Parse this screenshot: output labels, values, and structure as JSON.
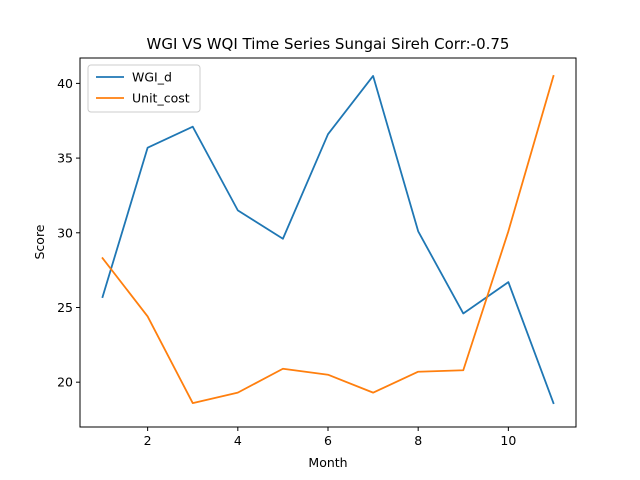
{
  "chart_data": {
    "type": "line",
    "title": "WGI VS WQI Time Series Sungai Sireh Corr:-0.75",
    "xlabel": "Month",
    "ylabel": "Score",
    "x": [
      1,
      2,
      3,
      4,
      5,
      6,
      7,
      8,
      9,
      10,
      11
    ],
    "xlim": [
      0.5,
      11.5
    ],
    "ylim": [
      17.0,
      41.7
    ],
    "xticks": [
      2,
      4,
      6,
      8,
      10
    ],
    "yticks": [
      20,
      25,
      30,
      35,
      40
    ],
    "grid": false,
    "legend_position": "top-left",
    "series": [
      {
        "name": "WGI_d",
        "color": "#1f77b4",
        "values": [
          25.7,
          35.7,
          37.1,
          31.5,
          29.6,
          36.6,
          40.5,
          30.1,
          24.6,
          26.7,
          18.6
        ]
      },
      {
        "name": "Unit_cost",
        "color": "#ff7f0e",
        "values": [
          28.3,
          24.4,
          18.6,
          19.3,
          20.9,
          20.5,
          19.3,
          20.7,
          20.8,
          30.1,
          40.5
        ]
      }
    ]
  }
}
